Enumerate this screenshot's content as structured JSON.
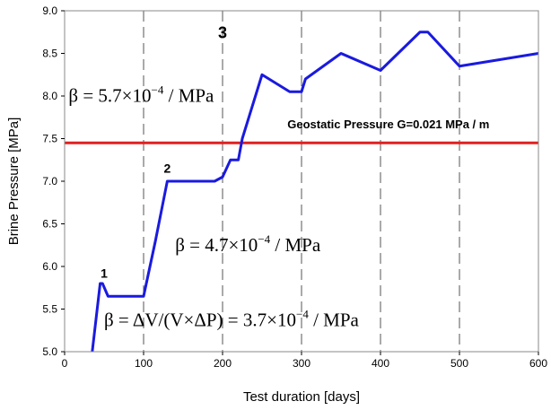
{
  "chart_data": {
    "type": "line",
    "xlabel": "Test duration [days]",
    "ylabel": "Brine Pressure [MPa]",
    "xlim": [
      0,
      600
    ],
    "ylim": [
      5.0,
      9.0
    ],
    "x_ticks": [
      "0",
      "100",
      "200",
      "300",
      "400",
      "500",
      "600"
    ],
    "y_ticks": [
      "5.0",
      "5.5",
      "6.0",
      "6.5",
      "7.0",
      "7.5",
      "8.0",
      "8.5",
      "9.0"
    ],
    "vertical_dashed_gridlines_at": [
      100,
      200,
      300,
      400,
      500
    ],
    "line_color": "#1a1adf",
    "series": [
      {
        "x": [
          35,
          45,
          48,
          55,
          100,
          115,
          130,
          145,
          190,
          200,
          210,
          220,
          225,
          250,
          285,
          300,
          305,
          350,
          400,
          450,
          460,
          500,
          600
        ],
        "y": [
          5.0,
          5.8,
          5.8,
          5.65,
          5.65,
          6.3,
          7.0,
          7.0,
          7.0,
          7.05,
          7.25,
          7.25,
          7.5,
          8.25,
          8.05,
          8.05,
          8.2,
          8.5,
          8.3,
          8.75,
          8.75,
          8.35,
          8.5
        ]
      }
    ],
    "reference_line": {
      "y": 7.45,
      "color": "#e02020",
      "label": "Geostatic Pressure G=0.021 MPa / m"
    },
    "point_labels": [
      {
        "text": "1",
        "x": 50,
        "y": 5.87
      },
      {
        "text": "2",
        "x": 130,
        "y": 7.1
      },
      {
        "text": "3",
        "x": 200,
        "y": 8.68
      }
    ],
    "annotations": [
      {
        "prefix": "β = 5.7×10",
        "exponent": "−4",
        "suffix": " / MPa",
        "x": 5,
        "y": 7.93
      },
      {
        "prefix": "β = 4.7×10",
        "exponent": "−4",
        "suffix": " / MPa",
        "x": 140,
        "y": 6.18
      },
      {
        "prefix": "β = ΔV/(V×ΔP) = 3.7×10",
        "exponent": "−4",
        "suffix": " / MPa",
        "x": 50,
        "y": 5.3
      }
    ]
  }
}
